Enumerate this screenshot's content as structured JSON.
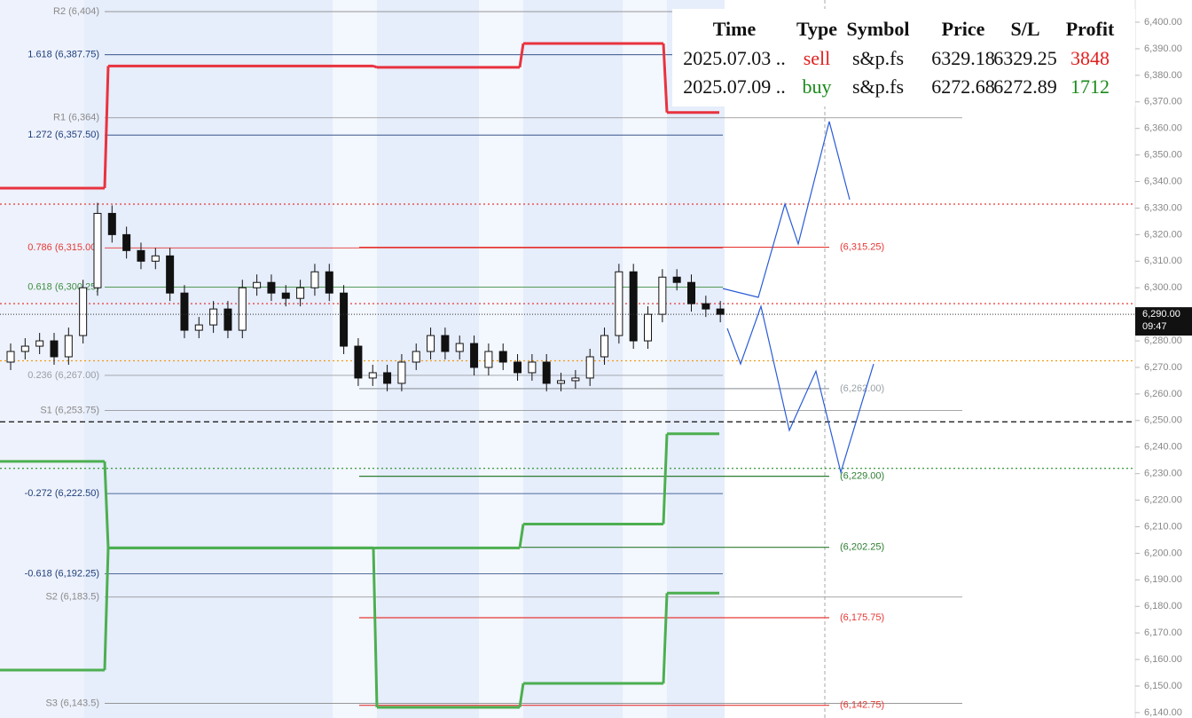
{
  "chart_data": {
    "type": "candlestick",
    "ylim": [
      6137.97,
      6408.36
    ],
    "yticks": [
      {
        "value": 6400,
        "label": "6,400.00"
      },
      {
        "value": 6390,
        "label": "6,390.00"
      },
      {
        "value": 6380,
        "label": "6,380.00"
      },
      {
        "value": 6370,
        "label": "6,370.00"
      },
      {
        "value": 6360,
        "label": "6,360.00"
      },
      {
        "value": 6350,
        "label": "6,350.00"
      },
      {
        "value": 6340,
        "label": "6,340.00"
      },
      {
        "value": 6330,
        "label": "6,330.00"
      },
      {
        "value": 6320,
        "label": "6,320.00"
      },
      {
        "value": 6310,
        "label": "6,310.00"
      },
      {
        "value": 6300,
        "label": "6,300.00"
      },
      {
        "value": 6290,
        "label": "6,290.00"
      },
      {
        "value": 6280,
        "label": "6,280.00"
      },
      {
        "value": 6270,
        "label": "6,270.00"
      },
      {
        "value": 6260,
        "label": "6,260.00"
      },
      {
        "value": 6250,
        "label": "6,250.00"
      },
      {
        "value": 6240,
        "label": "6,240.00"
      },
      {
        "value": 6230,
        "label": "6,230.00"
      },
      {
        "value": 6220,
        "label": "6,220.00"
      },
      {
        "value": 6210,
        "label": "6,210.00"
      },
      {
        "value": 6200,
        "label": "6,200.00"
      },
      {
        "value": 6190,
        "label": "6,190.00"
      },
      {
        "value": 6180,
        "label": "6,180.00"
      },
      {
        "value": 6170,
        "label": "6,170.00"
      },
      {
        "value": 6160,
        "label": "6,160.00"
      },
      {
        "value": 6150,
        "label": "6,150.00"
      },
      {
        "value": 6140,
        "label": "6,140.00"
      }
    ],
    "ohlc": [
      [
        6272,
        6279,
        6269,
        6276
      ],
      [
        6276,
        6281,
        6273,
        6278
      ],
      [
        6278,
        6283,
        6275,
        6280
      ],
      [
        6280,
        6283,
        6271,
        6274
      ],
      [
        6274,
        6285,
        6271,
        6282
      ],
      [
        6282,
        6303,
        6279,
        6300
      ],
      [
        6300,
        6332,
        6297,
        6328
      ],
      [
        6328,
        6331,
        6317,
        6320
      ],
      [
        6320,
        6323,
        6311,
        6314
      ],
      [
        6314,
        6317,
        6307,
        6310
      ],
      [
        6310,
        6315,
        6307,
        6312
      ],
      [
        6312,
        6315,
        6295,
        6298
      ],
      [
        6298,
        6301,
        6281,
        6284
      ],
      [
        6284,
        6289,
        6281,
        6286
      ],
      [
        6286,
        6295,
        6283,
        6292
      ],
      [
        6292,
        6295,
        6281,
        6284
      ],
      [
        6284,
        6303,
        6281,
        6300
      ],
      [
        6300,
        6305,
        6297,
        6302
      ],
      [
        6302,
        6305,
        6295,
        6298
      ],
      [
        6298,
        6301,
        6293,
        6296
      ],
      [
        6296,
        6303,
        6293,
        6300
      ],
      [
        6300,
        6309,
        6297,
        6306
      ],
      [
        6306,
        6309,
        6295,
        6298
      ],
      [
        6298,
        6301,
        6275,
        6278
      ],
      [
        6278,
        6281,
        6263,
        6266
      ],
      [
        6266,
        6271,
        6263,
        6268
      ],
      [
        6268,
        6271,
        6261,
        6264
      ],
      [
        6264,
        6275,
        6261,
        6272
      ],
      [
        6272,
        6279,
        6269,
        6276
      ],
      [
        6276,
        6285,
        6273,
        6282
      ],
      [
        6282,
        6285,
        6273,
        6276
      ],
      [
        6276,
        6282,
        6273,
        6279
      ],
      [
        6279,
        6282,
        6267,
        6270
      ],
      [
        6270,
        6279,
        6267,
        6276
      ],
      [
        6276,
        6279,
        6269,
        6272
      ],
      [
        6272,
        6275,
        6265,
        6268
      ],
      [
        6268,
        6275,
        6265,
        6272
      ],
      [
        6272,
        6275,
        6261,
        6264
      ],
      [
        6264,
        6268,
        6261,
        6265
      ],
      [
        6265,
        6269,
        6262,
        6266
      ],
      [
        6266,
        6277,
        6263,
        6274
      ],
      [
        6274,
        6285,
        6271,
        6282
      ],
      [
        6282,
        6309,
        6279,
        6306
      ],
      [
        6306,
        6309,
        6277,
        6280
      ],
      [
        6280,
        6293,
        6277,
        6290
      ],
      [
        6290,
        6307,
        6287,
        6304
      ],
      [
        6304,
        6307,
        6299,
        6302
      ],
      [
        6302,
        6305,
        6291,
        6294
      ],
      [
        6294,
        6297,
        6289,
        6292
      ],
      [
        6292,
        6295,
        6287,
        6290
      ]
    ],
    "up_color": "#ffffff",
    "down_color": "#111111",
    "steps": [
      {
        "color": "#e8333f",
        "values": [
          6337.5,
          6383.5,
          6383,
          6392,
          6366
        ]
      },
      {
        "color": "#4caf50",
        "values": [
          6234.6,
          6202,
          6202,
          6211,
          6245
        ]
      },
      {
        "color": "#4caf50",
        "values": [
          6156,
          6202,
          6142,
          6151,
          6185
        ]
      }
    ],
    "dotted_lines": [
      {
        "value": 6331.5,
        "color": "#e53935"
      },
      {
        "value": 6294,
        "color": "#e53935"
      },
      {
        "value": 6272.5,
        "color": "#f39c12"
      },
      {
        "value": 6249.5,
        "color": "#222222"
      },
      {
        "value": 6232,
        "color": "#43a047"
      }
    ],
    "left_levels": [
      {
        "label": "R2 (6,404)",
        "value": 6404,
        "color": "#8a8a8a"
      },
      {
        "label": "1.618 (6,387.75)",
        "value": 6387.75,
        "color": "#1f3f7a"
      },
      {
        "label": "R1 (6,364)",
        "value": 6364,
        "color": "#8a8a8a"
      },
      {
        "label": "1.272 (6,357.50)",
        "value": 6357.5,
        "color": "#1f3f7a"
      },
      {
        "label": "0.786 (6,315.00)",
        "value": 6315,
        "color": "#e53935"
      },
      {
        "label": "0.618 (6,300.25)",
        "value": 6300.25,
        "color": "#3e8e41"
      },
      {
        "label": "0.236 (6,267.00)",
        "value": 6267,
        "color": "#9aa0a6"
      },
      {
        "label": "S1 (6,253.75)",
        "value": 6253.75,
        "color": "#8a8a8a"
      },
      {
        "label": "-0.272 (6,222.50)",
        "value": 6222.5,
        "color": "#1f3f7a"
      },
      {
        "label": "-0.618 (6,192.25)",
        "value": 6192.25,
        "color": "#1f3f7a"
      },
      {
        "label": "S2 (6,183.5)",
        "value": 6183.5,
        "color": "#8a8a8a"
      },
      {
        "label": "S3 (6,143.5)",
        "value": 6143.5,
        "color": "#8a8a8a"
      }
    ],
    "right_levels": [
      {
        "label": "(6,315.25)",
        "value": 6315.25,
        "color": "#e53935"
      },
      {
        "label": "(6,262.00)",
        "value": 6262,
        "color": "#9aa0a6"
      },
      {
        "label": "(6,229.00)",
        "value": 6229,
        "color": "#2e7d32"
      },
      {
        "label": "(6,202.25)",
        "value": 6202.25,
        "color": "#2e7d32"
      },
      {
        "label": "(6,175.75)",
        "value": 6175.75,
        "color": "#e53935"
      },
      {
        "label": "(6,142.75)",
        "value": 6142.75,
        "color": "#e53935"
      }
    ],
    "projections": [
      {
        "color": "#2a5bd7",
        "values": [
          6299.7,
          6296.4,
          6331.5,
          6316.5,
          6362.6,
          6333.2
        ]
      },
      {
        "color": "#2a5bd7",
        "values": [
          6284.7,
          6271.3,
          6293.0,
          6246.3,
          6268.6,
          6230.5,
          6271.3
        ]
      }
    ],
    "last_price": {
      "value": 6290,
      "label": "6,290.00",
      "time": "09:47"
    }
  },
  "trades": {
    "columns": [
      "Time",
      "Type",
      "Symbol",
      "Price",
      "S/L",
      "Profit"
    ],
    "rows": [
      [
        "2025.07.03 ..",
        "sell",
        "s&p.fs",
        "6329.18",
        "6329.25",
        "3848"
      ],
      [
        "2025.07.09 ..",
        "buy",
        "s&p.fs",
        "6272.68",
        "6272.89",
        "1712"
      ]
    ],
    "row_colors": [
      "#e02020",
      "#1a8a1a"
    ]
  }
}
